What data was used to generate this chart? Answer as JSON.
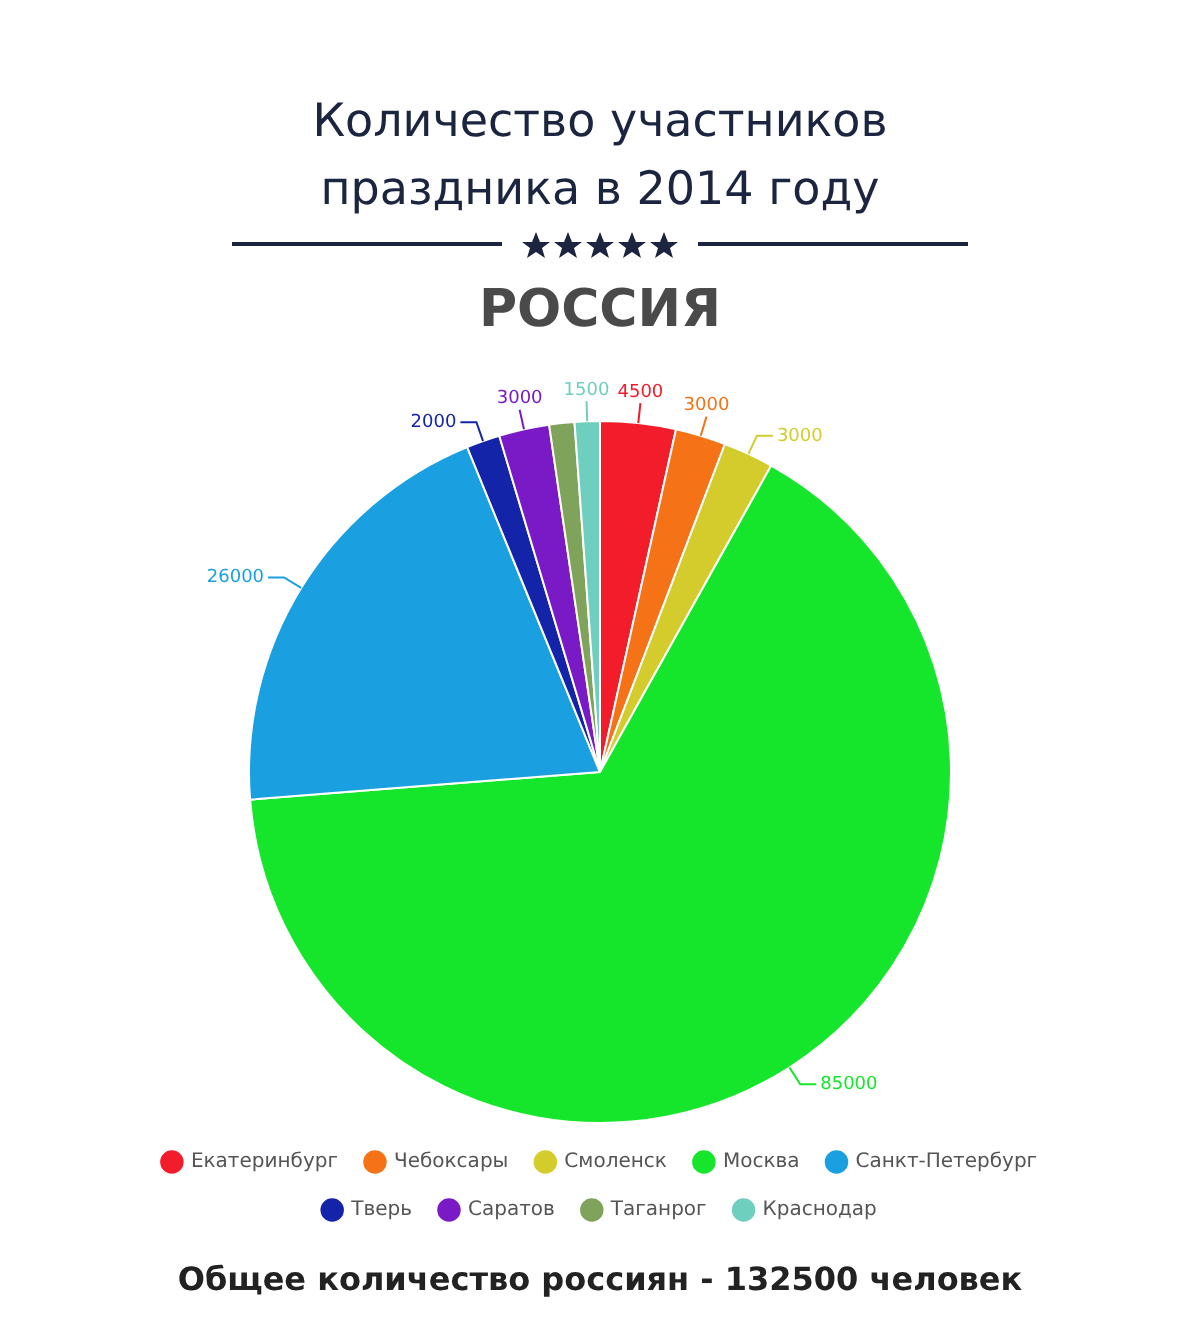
{
  "chart_data": {
    "type": "pie",
    "title": "Количество участников праздника в 2014 году",
    "subtitle": "РОССИЯ",
    "categories": [
      "Екатеринбург",
      "Чебоксары",
      "Смоленск",
      "Москва",
      "Санкт-Петербург",
      "Тверь",
      "Саратов",
      "Таганрог",
      "Краснодар"
    ],
    "values": [
      4500,
      3000,
      3000,
      85000,
      26000,
      2000,
      3000,
      1500,
      1500
    ],
    "value_labels": [
      "4500",
      "3000",
      "3000",
      "85000",
      "26000",
      "2000",
      "3000",
      null,
      "1500"
    ],
    "colors": [
      "#f21c2a",
      "#f57217",
      "#d4cc2c",
      "#15e62b",
      "#1aa0e0",
      "#1424a8",
      "#7a1ac6",
      "#7fa35a",
      "#6fcfbf"
    ],
    "legend": "bottom",
    "annotations": [
      "Общее количество россиян - 132500 человек"
    ]
  }
}
